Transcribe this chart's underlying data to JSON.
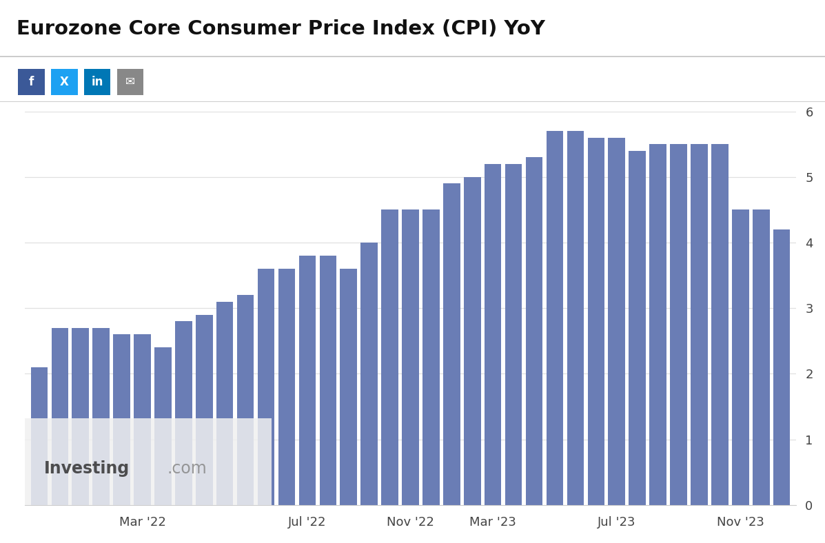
{
  "title": "Eurozone Core Consumer Price Index (CPI) YoY",
  "bar_color": "#6a7db5",
  "background_color": "#ffffff",
  "plot_bg_color": "#ffffff",
  "grid_color": "#e0e0e0",
  "ylim": [
    0,
    6
  ],
  "yticks": [
    0,
    1,
    2,
    3,
    4,
    5,
    6
  ],
  "values": [
    2.1,
    2.7,
    2.7,
    2.7,
    2.6,
    2.6,
    2.4,
    2.8,
    2.9,
    3.1,
    3.2,
    3.6,
    3.6,
    3.8,
    3.8,
    3.6,
    4.0,
    4.5,
    4.5,
    4.5,
    4.9,
    5.0,
    5.2,
    5.2,
    5.3,
    5.7,
    5.7,
    5.6,
    5.6,
    5.4,
    5.5,
    5.5,
    5.5,
    5.5,
    4.5,
    4.5,
    4.2
  ],
  "xtick_labels": [
    "Mar '22",
    "Jul '22",
    "Nov '22",
    "Mar '23",
    "Jul '23",
    "Nov '23"
  ],
  "social_icons_colors": [
    "#3b5998",
    "#1da1f2",
    "#0077b5",
    "#888888"
  ],
  "social_icons_labels": [
    "f",
    "X",
    "in",
    "✉"
  ],
  "title_fontsize": 21,
  "tick_fontsize": 13,
  "investing_text": "Investing",
  "investing_com_text": ".com"
}
